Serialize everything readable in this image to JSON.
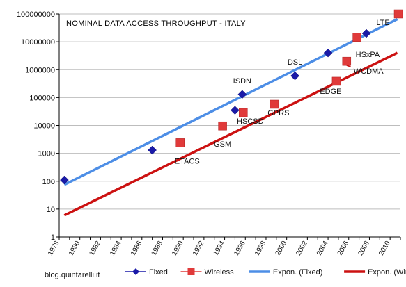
{
  "chart_data": {
    "type": "scatter",
    "title": "NOMINAL DATA ACCESS THROUGHPUT - ITALY",
    "footer": "blog.quintarelli.it",
    "y_scale": "log",
    "ylim": [
      1,
      100000000
    ],
    "xlim": [
      1978,
      2011
    ],
    "y_tick_labels": [
      "1",
      "10",
      "100",
      "1000",
      "10000",
      "100000",
      "1000000",
      "10000000",
      "100000000"
    ],
    "x_tick_labels": [
      "1978",
      "1980",
      "1982",
      "1984",
      "1986",
      "1988",
      "1990",
      "1992",
      "1994",
      "1996",
      "1998",
      "2000",
      "2002",
      "2004",
      "2006",
      "2008",
      "2010"
    ],
    "grid": "horizontal",
    "legend_position": "bottom",
    "colors": {
      "fixed_marker": "#1a1aa8",
      "wireless_marker": "#e03a3a",
      "fixed_trend": "#4d8ee6",
      "wireless_trend": "#cc1111"
    },
    "series": [
      {
        "name": "Fixed",
        "kind": "markers",
        "marker": "diamond",
        "points": [
          {
            "x": 1978.5,
            "y": 110,
            "label": ""
          },
          {
            "x": 1987,
            "y": 1300,
            "label": ""
          },
          {
            "x": 1995,
            "y": 35000,
            "label": ""
          },
          {
            "x": 1995.7,
            "y": 130000,
            "label": "ISDN"
          },
          {
            "x": 2000.8,
            "y": 600000,
            "label": "DSL"
          },
          {
            "x": 2004,
            "y": 4000000,
            "label": ""
          },
          {
            "x": 2007.7,
            "y": 20000000,
            "label": ""
          }
        ]
      },
      {
        "name": "Wireless",
        "kind": "markers",
        "marker": "square",
        "points": [
          {
            "x": 1989.7,
            "y": 2400,
            "label": "ETACS"
          },
          {
            "x": 1993.8,
            "y": 9600,
            "label": "GSM"
          },
          {
            "x": 1995.8,
            "y": 28800,
            "label": "HSCSD"
          },
          {
            "x": 1998.8,
            "y": 57600,
            "label": "GPRS"
          },
          {
            "x": 2004.8,
            "y": 384000,
            "label": "EDGE"
          },
          {
            "x": 2005.8,
            "y": 2000000,
            "label": "WCDMA"
          },
          {
            "x": 2006.8,
            "y": 14400000,
            "label": "HSxPA"
          },
          {
            "x": 2010.8,
            "y": 100000000,
            "label": "LTE"
          }
        ]
      },
      {
        "name": "Expon. (Fixed)",
        "kind": "trend",
        "points": [
          {
            "x": 1978.5,
            "y": 75
          },
          {
            "x": 2010.7,
            "y": 65000000
          }
        ]
      },
      {
        "name": "Expon. (Wireless)",
        "kind": "trend",
        "points": [
          {
            "x": 1978.5,
            "y": 6
          },
          {
            "x": 2010.7,
            "y": 4000000
          }
        ]
      }
    ]
  }
}
